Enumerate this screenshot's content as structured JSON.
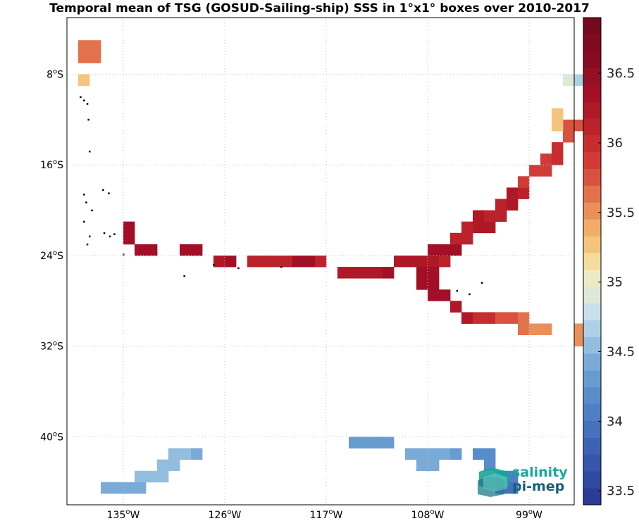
{
  "title": "Temporal mean of TSG (GOSUD-Sailing-ship) SSS in 1°x1° boxes over 2010-2017",
  "map": {
    "lon_range": [
      -140,
      -95
    ],
    "lat_range": [
      -46,
      -3
    ],
    "lat_ticks": [
      {
        "value": -8,
        "deg": "8",
        "hemi": "S"
      },
      {
        "value": -16,
        "deg": "16",
        "hemi": "S"
      },
      {
        "value": -24,
        "deg": "24",
        "hemi": "S"
      },
      {
        "value": -32,
        "deg": "32",
        "hemi": "S"
      },
      {
        "value": -40,
        "deg": "40",
        "hemi": "S"
      }
    ],
    "lon_ticks": [
      {
        "value": -135,
        "deg": "135",
        "hemi": "W"
      },
      {
        "value": -126,
        "deg": "126",
        "hemi": "W"
      },
      {
        "value": -117,
        "deg": "117",
        "hemi": "W"
      },
      {
        "value": -108,
        "deg": "108",
        "hemi": "W"
      },
      {
        "value": -99,
        "deg": "99",
        "hemi": "W"
      }
    ],
    "grid": true,
    "degree_symbol": "o",
    "land_color": "#000000",
    "islands": [
      [
        -138.8,
        -10.0
      ],
      [
        -138.5,
        -10.3
      ],
      [
        -138.2,
        -10.6
      ],
      [
        -138.1,
        -12.0
      ],
      [
        -138.0,
        -14.8
      ],
      [
        -138.5,
        -18.6
      ],
      [
        -138.3,
        -19.3
      ],
      [
        -137.8,
        -20.0
      ],
      [
        -138.5,
        -21.0
      ],
      [
        -138.0,
        -22.3
      ],
      [
        -138.2,
        -23.0
      ],
      [
        -136.7,
        -22.0
      ],
      [
        -136.2,
        -22.3
      ],
      [
        -135.8,
        -22.1
      ],
      [
        -135.0,
        -23.9
      ],
      [
        -136.3,
        -18.5
      ],
      [
        -136.8,
        -18.2
      ],
      [
        -127.0,
        -24.8
      ],
      [
        -129.6,
        -25.8
      ],
      [
        -124.8,
        -25.1
      ],
      [
        -121.0,
        -25.0
      ],
      [
        -105.4,
        -27.1
      ],
      [
        -104.3,
        -27.4
      ],
      [
        -103.2,
        -26.4
      ]
    ]
  },
  "colorbar": {
    "min": 33.4,
    "max": 36.9,
    "levels": 29,
    "ticks": [
      "33.5",
      "34",
      "34.5",
      "35",
      "35.5",
      "36",
      "36.5"
    ],
    "colors": [
      "#2b3c97",
      "#3049a2",
      "#3656ac",
      "#3d63b5",
      "#4571bd",
      "#4e7fc4",
      "#598dca",
      "#679cd0",
      "#7aaad6",
      "#93bdde",
      "#aed0e6",
      "#c8e0ea",
      "#dde8d8",
      "#ede9c3",
      "#f5dc9e",
      "#f4c47c",
      "#f1ac68",
      "#eb8f58",
      "#e3714b",
      "#d95240",
      "#d03b37",
      "#c72d30",
      "#bb222b",
      "#ae1827",
      "#a20f26",
      "#951024",
      "#8a0a22",
      "#800a20",
      "#750a1e"
    ]
  },
  "chart_data": {
    "type": "heatmap",
    "title": "Temporal mean of TSG (GOSUD-Sailing-ship) SSS in 1°x1° boxes over 2010-2017",
    "variable": "SSS",
    "grid_resolution_deg": 1,
    "cells": [
      {
        "lon": -139,
        "lat": -5,
        "sss": 35.6
      },
      {
        "lon": -138,
        "lat": -5,
        "sss": 35.6
      },
      {
        "lon": -139,
        "lat": -6,
        "sss": 35.6
      },
      {
        "lon": -138,
        "lat": -6,
        "sss": 35.6
      },
      {
        "lon": -139,
        "lat": -8,
        "sss": 35.3
      },
      {
        "lon": -135,
        "lat": -21,
        "sss": 36.4
      },
      {
        "lon": -135,
        "lat": -22,
        "sss": 36.4
      },
      {
        "lon": -134,
        "lat": -23,
        "sss": 36.3
      },
      {
        "lon": -133,
        "lat": -23,
        "sss": 36.3
      },
      {
        "lon": -130,
        "lat": -23,
        "sss": 36.3
      },
      {
        "lon": -129,
        "lat": -23,
        "sss": 36.3
      },
      {
        "lon": -127,
        "lat": -24,
        "sss": 36.2
      },
      {
        "lon": -126,
        "lat": -24,
        "sss": 36.3
      },
      {
        "lon": -124,
        "lat": -24,
        "sss": 36.1
      },
      {
        "lon": -123,
        "lat": -24,
        "sss": 36.1
      },
      {
        "lon": -122,
        "lat": -24,
        "sss": 36.1
      },
      {
        "lon": -121,
        "lat": -24,
        "sss": 36.1
      },
      {
        "lon": -120,
        "lat": -24,
        "sss": 36.3
      },
      {
        "lon": -119,
        "lat": -24,
        "sss": 36.3
      },
      {
        "lon": -118,
        "lat": -24,
        "sss": 36.1
      },
      {
        "lon": -116,
        "lat": -25,
        "sss": 36.2
      },
      {
        "lon": -115,
        "lat": -25,
        "sss": 36.2
      },
      {
        "lon": -114,
        "lat": -25,
        "sss": 36.2
      },
      {
        "lon": -113,
        "lat": -25,
        "sss": 36.2
      },
      {
        "lon": -112,
        "lat": -25,
        "sss": 36.3
      },
      {
        "lon": -111,
        "lat": -24,
        "sss": 36.2
      },
      {
        "lon": -110,
        "lat": -24,
        "sss": 36.2
      },
      {
        "lon": -109,
        "lat": -24,
        "sss": 36.2
      },
      {
        "lon": -108,
        "lat": -24,
        "sss": 36.2
      },
      {
        "lon": -107,
        "lat": -24,
        "sss": 36.1
      },
      {
        "lon": -109,
        "lat": -25,
        "sss": 36.3
      },
      {
        "lon": -108,
        "lat": -25,
        "sss": 36.3
      },
      {
        "lon": -109,
        "lat": -26,
        "sss": 36.3
      },
      {
        "lon": -108,
        "lat": -26,
        "sss": 36.3
      },
      {
        "lon": -108,
        "lat": -27,
        "sss": 36.3
      },
      {
        "lon": -107,
        "lat": -27,
        "sss": 36.3
      },
      {
        "lon": -106,
        "lat": -28,
        "sss": 36.2
      },
      {
        "lon": -105,
        "lat": -29,
        "sss": 36.2
      },
      {
        "lon": -108,
        "lat": -23,
        "sss": 36.3
      },
      {
        "lon": -107,
        "lat": -23,
        "sss": 36.3
      },
      {
        "lon": -106,
        "lat": -23,
        "sss": 36.3
      },
      {
        "lon": -106,
        "lat": -22,
        "sss": 36.1
      },
      {
        "lon": -105,
        "lat": -22,
        "sss": 36.1
      },
      {
        "lon": -105,
        "lat": -21,
        "sss": 36.1
      },
      {
        "lon": -104,
        "lat": -21,
        "sss": 36.2
      },
      {
        "lon": -103,
        "lat": -21,
        "sss": 36.2
      },
      {
        "lon": -104,
        "lat": -20,
        "sss": 36.2
      },
      {
        "lon": -103,
        "lat": -20,
        "sss": 36.1
      },
      {
        "lon": -102,
        "lat": -20,
        "sss": 36.1
      },
      {
        "lon": -102,
        "lat": -19,
        "sss": 36.1
      },
      {
        "lon": -101,
        "lat": -19,
        "sss": 36.2
      },
      {
        "lon": -101,
        "lat": -18,
        "sss": 36.2
      },
      {
        "lon": -100,
        "lat": -18,
        "sss": 36.1
      },
      {
        "lon": -100,
        "lat": -17,
        "sss": 35.9
      },
      {
        "lon": -99,
        "lat": -16,
        "sss": 35.9
      },
      {
        "lon": -98,
        "lat": -16,
        "sss": 35.9
      },
      {
        "lon": -98,
        "lat": -15,
        "sss": 35.9
      },
      {
        "lon": -97,
        "lat": -15,
        "sss": 36.0
      },
      {
        "lon": -97,
        "lat": -14,
        "sss": 36.0
      },
      {
        "lon": -96,
        "lat": -12,
        "sss": 35.8
      },
      {
        "lon": -95,
        "lat": -12,
        "sss": 35.8
      },
      {
        "lon": -96,
        "lat": -13,
        "sss": 35.8
      },
      {
        "lon": -97,
        "lat": -11,
        "sss": 35.3
      },
      {
        "lon": -97,
        "lat": -12,
        "sss": 35.3
      },
      {
        "lon": -96,
        "lat": -8,
        "sss": 34.9
      },
      {
        "lon": -95,
        "lat": -8,
        "sss": 34.7
      },
      {
        "lon": -104,
        "lat": -29,
        "sss": 36.0
      },
      {
        "lon": -103,
        "lat": -29,
        "sss": 36.0
      },
      {
        "lon": -102,
        "lat": -29,
        "sss": 35.8
      },
      {
        "lon": -101,
        "lat": -29,
        "sss": 35.8
      },
      {
        "lon": -100,
        "lat": -29,
        "sss": 35.6
      },
      {
        "lon": -100,
        "lat": -30,
        "sss": 35.6
      },
      {
        "lon": -99,
        "lat": -30,
        "sss": 35.5
      },
      {
        "lon": -98,
        "lat": -30,
        "sss": 35.5
      },
      {
        "lon": -95,
        "lat": -30,
        "sss": 35.5
      },
      {
        "lon": -95,
        "lat": -31,
        "sss": 35.5
      },
      {
        "lon": -115,
        "lat": -40,
        "sss": 34.3
      },
      {
        "lon": -114,
        "lat": -40,
        "sss": 34.3
      },
      {
        "lon": -113,
        "lat": -40,
        "sss": 34.3
      },
      {
        "lon": -112,
        "lat": -40,
        "sss": 34.3
      },
      {
        "lon": -110,
        "lat": -41,
        "sss": 34.4
      },
      {
        "lon": -109,
        "lat": -41,
        "sss": 34.4
      },
      {
        "lon": -108,
        "lat": -41,
        "sss": 34.4
      },
      {
        "lon": -107,
        "lat": -41,
        "sss": 34.4
      },
      {
        "lon": -106,
        "lat": -41,
        "sss": 34.3
      },
      {
        "lon": -109,
        "lat": -42,
        "sss": 34.4
      },
      {
        "lon": -108,
        "lat": -42,
        "sss": 34.4
      },
      {
        "lon": -104,
        "lat": -41,
        "sss": 34.2
      },
      {
        "lon": -103,
        "lat": -41,
        "sss": 34.2
      },
      {
        "lon": -103,
        "lat": -42,
        "sss": 34.2
      },
      {
        "lon": -102,
        "lat": -43,
        "sss": 34.1
      },
      {
        "lon": -101,
        "lat": -43,
        "sss": 34.1
      },
      {
        "lon": -102,
        "lat": -44,
        "sss": 34.0
      },
      {
        "lon": -101,
        "lat": -44,
        "sss": 34.0
      },
      {
        "lon": -131,
        "lat": -41,
        "sss": 34.5
      },
      {
        "lon": -130,
        "lat": -41,
        "sss": 34.5
      },
      {
        "lon": -129,
        "lat": -41,
        "sss": 34.4
      },
      {
        "lon": -132,
        "lat": -42,
        "sss": 34.5
      },
      {
        "lon": -131,
        "lat": -42,
        "sss": 34.5
      },
      {
        "lon": -132,
        "lat": -43,
        "sss": 34.5
      },
      {
        "lon": -133,
        "lat": -43,
        "sss": 34.5
      },
      {
        "lon": -134,
        "lat": -43,
        "sss": 34.5
      },
      {
        "lon": -135,
        "lat": -44,
        "sss": 34.4
      },
      {
        "lon": -134,
        "lat": -44,
        "sss": 34.4
      },
      {
        "lon": -137,
        "lat": -44,
        "sss": 34.4
      },
      {
        "lon": -136,
        "lat": -44,
        "sss": 34.4
      }
    ]
  },
  "logo": {
    "line1": "salinity",
    "line2": "pi-mep"
  }
}
